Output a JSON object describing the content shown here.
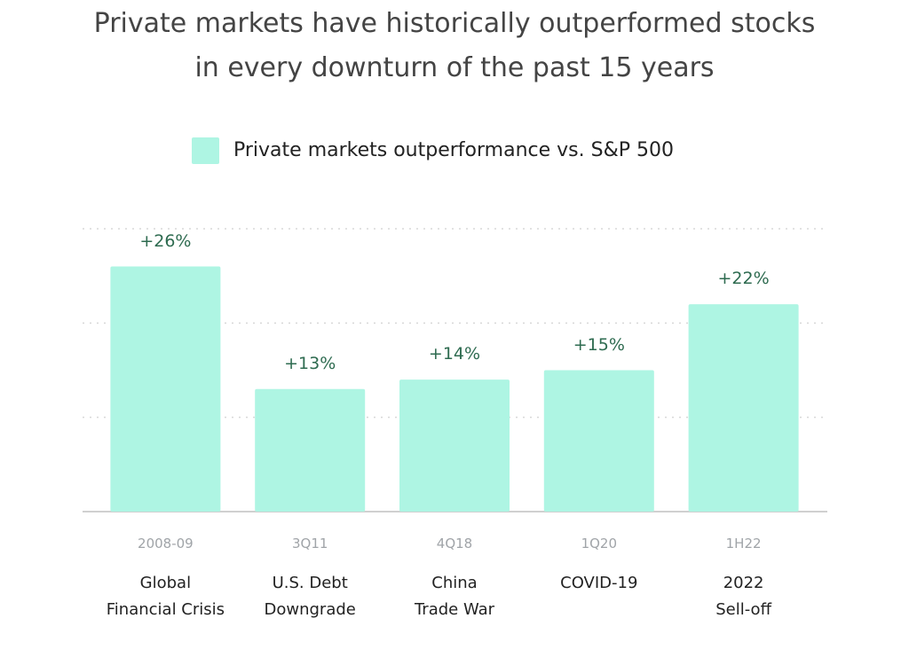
{
  "chart_data": {
    "type": "bar",
    "title": "Private markets have historically outperformed stocks in every downturn of the past 15 years",
    "legend": "Private markets outperformance vs. S&P 500",
    "periods": [
      "2008-09",
      "3Q11",
      "4Q18",
      "1Q20",
      "1H22"
    ],
    "categories": [
      "Global\nFinancial Crisis",
      "U.S. Debt\nDowngrade",
      "China\nTrade War",
      "COVID-19",
      "2022\nSell-off"
    ],
    "values": [
      26,
      13,
      14,
      15,
      22
    ],
    "value_labels": [
      "+26%",
      "+13%",
      "+14%",
      "+15%",
      "+22%"
    ],
    "color": "#aef5e3",
    "ylim": [
      0,
      30
    ],
    "yticks": [
      0,
      10,
      20,
      30
    ],
    "grid": true
  }
}
